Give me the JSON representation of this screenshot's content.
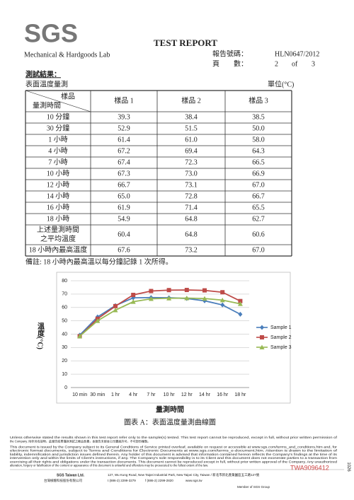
{
  "header": {
    "logo": "SGS",
    "lab": "Mechanical & Hardgoods Lab",
    "title": "TEST REPORT",
    "report_no_label": "報告號碼：",
    "report_no": "HLN0647/2012",
    "page_label": "頁　　數：",
    "page": "2",
    "of": "of",
    "total": "3"
  },
  "section": "測試結果：",
  "table": {
    "caption": "表面溫度量測",
    "unit": "單位(°C)",
    "corner_top": "樣品",
    "corner_bottom": "量測時間",
    "columns": [
      "樣品 1",
      "樣品 2",
      "樣品 3"
    ],
    "rows": [
      {
        "label": "10 分鐘",
        "values": [
          "39.3",
          "38.4",
          "38.5"
        ]
      },
      {
        "label": "30 分鐘",
        "values": [
          "52.9",
          "51.5",
          "50.0"
        ]
      },
      {
        "label": "1 小時",
        "values": [
          "61.4",
          "61.0",
          "58.0"
        ]
      },
      {
        "label": "4 小時",
        "values": [
          "67.2",
          "69.4",
          "64.3"
        ]
      },
      {
        "label": "7 小時",
        "values": [
          "67.4",
          "72.3",
          "66.5"
        ]
      },
      {
        "label": "10 小時",
        "values": [
          "67.3",
          "73.0",
          "66.9"
        ]
      },
      {
        "label": "12 小時",
        "values": [
          "66.7",
          "73.1",
          "67.0"
        ]
      },
      {
        "label": "14 小時",
        "values": [
          "65.0",
          "72.8",
          "66.7"
        ]
      },
      {
        "label": "16 小時",
        "values": [
          "61.9",
          "71.4",
          "65.5"
        ]
      },
      {
        "label": "18 小時",
        "values": [
          "54.9",
          "64.8",
          "62.7"
        ]
      },
      {
        "label": [
          "上述量測時間",
          "之平均溫度"
        ],
        "values": [
          "60.4",
          "64.8",
          "60.6"
        ]
      },
      {
        "label": "18 小時內最高溫度",
        "values": [
          "67.6",
          "73.2",
          "67.0"
        ]
      }
    ]
  },
  "note": "備註: 18 小時內最高溫以每分鐘記錄 1 次所得。",
  "chart_data": {
    "type": "line",
    "x_label": "量測時間",
    "y_label": "溫度(°C)",
    "caption": "圖表 A：表面溫度量測曲線圖",
    "categories": [
      "10 min",
      "30 min",
      "1 hr",
      "4 hr",
      "7 hr",
      "10 hr",
      "12 hr",
      "14 hr",
      "16 hr",
      "18 hr"
    ],
    "ylim": [
      0,
      80
    ],
    "yticks": [
      0,
      10,
      20,
      30,
      40,
      50,
      60,
      70,
      80
    ],
    "grid": true,
    "legend": "right",
    "series": [
      {
        "name": "Sample 1",
        "color": "#4a7ebb",
        "marker": "diamond",
        "values": [
          39.3,
          52.9,
          61.4,
          67.2,
          67.4,
          67.3,
          66.7,
          65.0,
          61.9,
          54.9
        ]
      },
      {
        "name": "Sample 2",
        "color": "#be4b48",
        "marker": "square",
        "values": [
          38.4,
          51.5,
          61.0,
          69.4,
          72.3,
          73.0,
          73.1,
          72.8,
          71.4,
          64.8
        ]
      },
      {
        "name": "Sample 3",
        "color": "#98b954",
        "marker": "triangle",
        "values": [
          38.5,
          50.0,
          58.0,
          64.3,
          66.5,
          66.9,
          67.0,
          66.7,
          65.5,
          62.7
        ]
      }
    ]
  },
  "footer": {
    "disclaimer": [
      "Unless otherwise stated the results shown in this test report refer only to the sample(s) tested. This test report cannot be reproduced, except in full, without prior written permission of",
      "the Company. 除非另有說明，此報告結果僅對測試之樣品負責，本報告未經本公司書面許可，不可部份複製。",
      "This document is issued by the Company subject to its General Conditions of Service printed overleaf, available on request or accessible at www.sgs.com/terms_and_conditions.htm and, for",
      "electronic format documents, subject to Terms and Conditions for Electronic Documents at www.sgs.com/terms_e-document.htm. Attention is drawn to the limitation of",
      "liability, indemnification and jurisdiction issues defined therein. Any holder of this document is advised that information contained hereon reflects the Company's findings at the time of its",
      "intervention only and within the limits of Client's instructions, if any. The Company's sole responsibility is to its Client and this document does not exonerate parties to a transaction from",
      "exercising all their rights and obligations under the transaction documents. This document cannot be reproduced except in full, without prior written approval of the Company. Any unauthorized",
      "alteration, forgery or falsification of the content or appearance of this document is unlawful and offenders may be prosecuted to the fullest extent of the law."
    ],
    "stamp": "TWA9096412",
    "side_number": "1026",
    "company": "SGS Taiwan Ltd.",
    "company_zh": "台灣檢驗科技股份有限公司",
    "address": "127, Wu Kung Road, New Taipei Industrial Park, New Taipei City, Taiwan / 新北市新北產業園區五工路127號",
    "phone": "t (886-2) 2299-3279",
    "fax": "f (886-2) 2299-2820",
    "web": "www.sgs.tw",
    "member": "Member of SGS Group"
  }
}
